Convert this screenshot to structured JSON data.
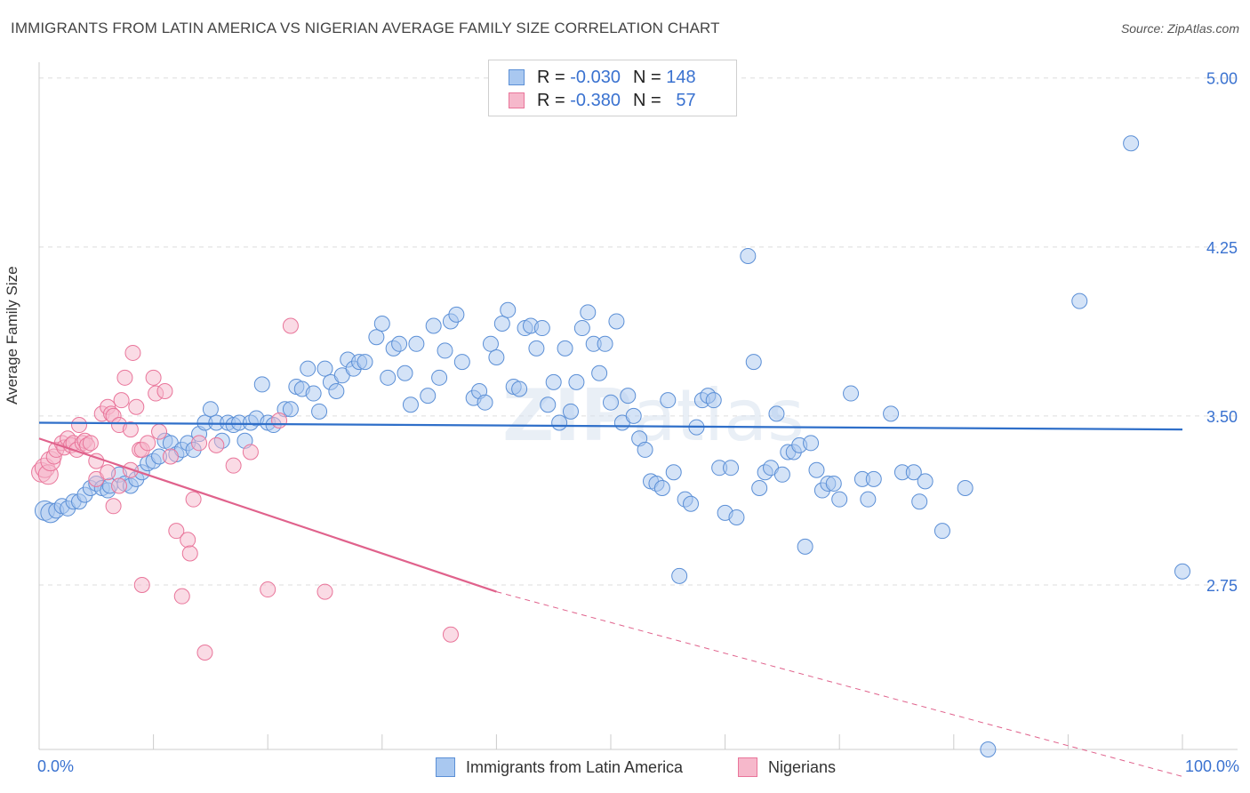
{
  "header": {
    "title": "IMMIGRANTS FROM LATIN AMERICA VS NIGERIAN AVERAGE FAMILY SIZE CORRELATION CHART",
    "source": "Source: ZipAtlas.com"
  },
  "watermark": {
    "text_bold": "ZIP",
    "text_light": "atlas"
  },
  "stats_legend": [
    {
      "r_label": "R =",
      "r_value": "-0.030",
      "n_label": "N =",
      "n_value": "148",
      "color": "#a9c8f0",
      "stroke": "#5b8fd6"
    },
    {
      "r_label": "R =",
      "r_value": "-0.380",
      "n_label": "N =",
      "n_value": "57",
      "color": "#f6b8cb",
      "stroke": "#e9759a"
    }
  ],
  "chart_data": {
    "type": "scatter",
    "title": "IMMIGRANTS FROM LATIN AMERICA VS NIGERIAN AVERAGE FAMILY SIZE CORRELATION CHART",
    "xlabel": "",
    "ylabel": "Average Family Size",
    "x_tick_labels": [
      "0.0%",
      "100.0%"
    ],
    "xlim": [
      0,
      100
    ],
    "ylim": [
      2.02,
      5.07
    ],
    "y_ticks": [
      2.75,
      3.5,
      4.25,
      5.0
    ],
    "y_tick_labels": [
      "2.75",
      "3.50",
      "4.25",
      "5.00"
    ],
    "grid": "horizontal dashed",
    "legend_position": "bottom",
    "series": [
      {
        "name": "Immigrants from Latin America",
        "color": "#a9c8f0",
        "stroke": "#5b8fd6",
        "trend": {
          "x0": 0,
          "y0": 3.47,
          "x1": 100,
          "y1": 3.44,
          "color": "#2f6fc9"
        },
        "points": [
          [
            0.5,
            3.08
          ],
          [
            1.0,
            3.07
          ],
          [
            1.5,
            3.08
          ],
          [
            2.0,
            3.1
          ],
          [
            2.5,
            3.09
          ],
          [
            3.0,
            3.12
          ],
          [
            3.5,
            3.12
          ],
          [
            4.0,
            3.15
          ],
          [
            4.5,
            3.18
          ],
          [
            5.0,
            3.2
          ],
          [
            5.5,
            3.18
          ],
          [
            6.0,
            3.17
          ],
          [
            6.2,
            3.19
          ],
          [
            7.0,
            3.24
          ],
          [
            7.5,
            3.2
          ],
          [
            8.0,
            3.19
          ],
          [
            8.5,
            3.22
          ],
          [
            9.0,
            3.25
          ],
          [
            9.5,
            3.29
          ],
          [
            10.0,
            3.3
          ],
          [
            10.5,
            3.32
          ],
          [
            11.0,
            3.39
          ],
          [
            11.5,
            3.38
          ],
          [
            12.0,
            3.33
          ],
          [
            12.5,
            3.35
          ],
          [
            13.0,
            3.38
          ],
          [
            13.5,
            3.35
          ],
          [
            14.0,
            3.42
          ],
          [
            14.5,
            3.47
          ],
          [
            15.0,
            3.53
          ],
          [
            15.5,
            3.47
          ],
          [
            16.0,
            3.39
          ],
          [
            16.5,
            3.47
          ],
          [
            17.0,
            3.46
          ],
          [
            17.5,
            3.47
          ],
          [
            18.0,
            3.39
          ],
          [
            18.5,
            3.47
          ],
          [
            19.0,
            3.49
          ],
          [
            19.5,
            3.64
          ],
          [
            20.0,
            3.47
          ],
          [
            20.5,
            3.46
          ],
          [
            21.5,
            3.53
          ],
          [
            22.0,
            3.53
          ],
          [
            22.5,
            3.63
          ],
          [
            23.0,
            3.62
          ],
          [
            23.5,
            3.71
          ],
          [
            24.0,
            3.6
          ],
          [
            24.5,
            3.52
          ],
          [
            25.0,
            3.71
          ],
          [
            25.5,
            3.65
          ],
          [
            26.0,
            3.61
          ],
          [
            26.5,
            3.68
          ],
          [
            27.0,
            3.75
          ],
          [
            27.5,
            3.71
          ],
          [
            28.0,
            3.74
          ],
          [
            28.5,
            3.74
          ],
          [
            29.5,
            3.85
          ],
          [
            30.0,
            3.91
          ],
          [
            30.5,
            3.67
          ],
          [
            31.0,
            3.8
          ],
          [
            31.5,
            3.82
          ],
          [
            32.0,
            3.69
          ],
          [
            32.5,
            3.55
          ],
          [
            33.0,
            3.82
          ],
          [
            34.0,
            3.59
          ],
          [
            34.5,
            3.9
          ],
          [
            35.0,
            3.67
          ],
          [
            35.5,
            3.79
          ],
          [
            36.0,
            3.92
          ],
          [
            36.5,
            3.95
          ],
          [
            37.0,
            3.74
          ],
          [
            38.0,
            3.58
          ],
          [
            38.5,
            3.61
          ],
          [
            39.0,
            3.56
          ],
          [
            39.5,
            3.82
          ],
          [
            40.0,
            3.76
          ],
          [
            40.5,
            3.91
          ],
          [
            41.0,
            3.97
          ],
          [
            41.5,
            3.63
          ],
          [
            42.0,
            3.62
          ],
          [
            42.5,
            3.89
          ],
          [
            43.0,
            3.9
          ],
          [
            43.5,
            3.8
          ],
          [
            44.0,
            3.89
          ],
          [
            44.5,
            3.55
          ],
          [
            45.0,
            3.65
          ],
          [
            45.5,
            3.47
          ],
          [
            46.0,
            3.8
          ],
          [
            46.5,
            3.52
          ],
          [
            47.0,
            3.65
          ],
          [
            47.5,
            3.89
          ],
          [
            48.0,
            3.96
          ],
          [
            48.5,
            3.82
          ],
          [
            49.0,
            3.69
          ],
          [
            49.5,
            3.82
          ],
          [
            50.0,
            3.56
          ],
          [
            50.5,
            3.92
          ],
          [
            51.0,
            3.47
          ],
          [
            51.5,
            3.59
          ],
          [
            52.0,
            3.5
          ],
          [
            52.5,
            3.4
          ],
          [
            53.0,
            3.35
          ],
          [
            53.5,
            3.21
          ],
          [
            54.0,
            3.2
          ],
          [
            54.5,
            3.18
          ],
          [
            55.0,
            3.57
          ],
          [
            55.5,
            3.25
          ],
          [
            56.0,
            2.79
          ],
          [
            56.5,
            3.13
          ],
          [
            57.0,
            3.11
          ],
          [
            57.5,
            3.45
          ],
          [
            58.0,
            3.57
          ],
          [
            58.5,
            3.59
          ],
          [
            59.0,
            3.57
          ],
          [
            59.5,
            3.27
          ],
          [
            60.0,
            3.07
          ],
          [
            60.5,
            3.27
          ],
          [
            61.0,
            3.05
          ],
          [
            62.0,
            4.21
          ],
          [
            62.5,
            3.74
          ],
          [
            63.0,
            3.18
          ],
          [
            63.5,
            3.25
          ],
          [
            64.0,
            3.27
          ],
          [
            64.5,
            3.51
          ],
          [
            65.0,
            3.24
          ],
          [
            65.5,
            3.34
          ],
          [
            66.0,
            3.34
          ],
          [
            66.5,
            3.37
          ],
          [
            67.0,
            2.92
          ],
          [
            67.5,
            3.38
          ],
          [
            68.0,
            3.26
          ],
          [
            68.5,
            3.17
          ],
          [
            69.0,
            3.2
          ],
          [
            69.5,
            3.2
          ],
          [
            70.0,
            3.13
          ],
          [
            71.0,
            3.6
          ],
          [
            72.0,
            3.22
          ],
          [
            72.5,
            3.13
          ],
          [
            73.0,
            3.22
          ],
          [
            74.5,
            3.51
          ],
          [
            75.5,
            3.25
          ],
          [
            76.5,
            3.25
          ],
          [
            77.0,
            3.12
          ],
          [
            77.5,
            3.21
          ],
          [
            79.0,
            2.99
          ],
          [
            81.0,
            3.18
          ],
          [
            91.0,
            4.01
          ],
          [
            95.5,
            4.71
          ],
          [
            100.0,
            2.81
          ],
          [
            83.0,
            2.02
          ]
        ]
      },
      {
        "name": "Nigerians",
        "color": "#f6b8cb",
        "stroke": "#e9759a",
        "trend": {
          "x0": 0,
          "y0": 3.4,
          "x1": 40,
          "y1": 2.72,
          "x_dash_end": 100,
          "y_dash_end": 1.9,
          "color": "#e0628c"
        },
        "points": [
          [
            0.2,
            3.25
          ],
          [
            0.5,
            3.27
          ],
          [
            0.8,
            3.24
          ],
          [
            1.0,
            3.3
          ],
          [
            1.3,
            3.32
          ],
          [
            1.5,
            3.35
          ],
          [
            2.0,
            3.38
          ],
          [
            2.2,
            3.36
          ],
          [
            2.5,
            3.4
          ],
          [
            2.8,
            3.37
          ],
          [
            3.0,
            3.38
          ],
          [
            3.3,
            3.35
          ],
          [
            3.5,
            3.46
          ],
          [
            3.8,
            3.38
          ],
          [
            4.0,
            3.39
          ],
          [
            4.2,
            3.37
          ],
          [
            4.5,
            3.38
          ],
          [
            5.0,
            3.3
          ],
          [
            5.5,
            3.51
          ],
          [
            6.0,
            3.54
          ],
          [
            6.3,
            3.51
          ],
          [
            6.5,
            3.5
          ],
          [
            7.0,
            3.46
          ],
          [
            7.2,
            3.57
          ],
          [
            7.5,
            3.67
          ],
          [
            8.0,
            3.44
          ],
          [
            8.2,
            3.78
          ],
          [
            8.5,
            3.54
          ],
          [
            8.8,
            3.35
          ],
          [
            9.0,
            3.35
          ],
          [
            9.5,
            3.38
          ],
          [
            10.0,
            3.67
          ],
          [
            10.2,
            3.6
          ],
          [
            10.5,
            3.43
          ],
          [
            11.0,
            3.61
          ],
          [
            11.5,
            3.32
          ],
          [
            12.0,
            2.99
          ],
          [
            12.5,
            2.7
          ],
          [
            13.0,
            2.95
          ],
          [
            13.2,
            2.89
          ],
          [
            13.5,
            3.13
          ],
          [
            14.0,
            3.38
          ],
          [
            14.5,
            2.45
          ],
          [
            5.0,
            3.22
          ],
          [
            6.0,
            3.25
          ],
          [
            6.5,
            3.1
          ],
          [
            7.0,
            3.19
          ],
          [
            8.0,
            3.26
          ],
          [
            9.0,
            2.75
          ],
          [
            15.5,
            3.37
          ],
          [
            17.0,
            3.28
          ],
          [
            18.5,
            3.34
          ],
          [
            20.0,
            2.73
          ],
          [
            21.0,
            3.48
          ],
          [
            22.0,
            3.9
          ],
          [
            25.0,
            2.72
          ],
          [
            36.0,
            2.53
          ]
        ]
      }
    ]
  },
  "legend_bottom": [
    {
      "label": "Immigrants from Latin America",
      "color": "#a9c8f0",
      "stroke": "#5b8fd6"
    },
    {
      "label": "Nigerians",
      "color": "#f6b8cb",
      "stroke": "#e9759a"
    }
  ]
}
